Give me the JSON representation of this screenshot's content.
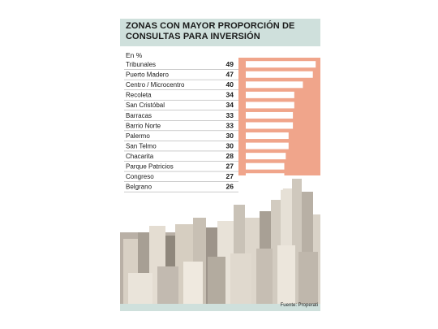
{
  "chart_data": {
    "type": "bar",
    "title": "ZONAS CON MAYOR PROPORCIÓN DE CONSULTAS PARA INVERSIÓN",
    "subtitle": "En %",
    "categories": [
      "Tribunales",
      "Puerto Madero",
      "Centro / Microcentro",
      "Recoleta",
      "San Cristóbal",
      "Barracas",
      "Barrio Norte",
      "Palermo",
      "San Telmo",
      "Chacarita",
      "Parque Patricios",
      "Congreso",
      "Belgrano"
    ],
    "values": [
      49,
      47,
      40,
      34,
      34,
      33,
      33,
      30,
      30,
      28,
      27,
      27,
      26
    ],
    "value_labels": [
      "49",
      "47",
      "40",
      "34",
      "34",
      "33",
      "33",
      "30",
      "30",
      "28",
      "27",
      "27",
      "26"
    ],
    "xlim": [
      0,
      50
    ],
    "orientation": "horizontal",
    "source": "Fuente: Properati"
  },
  "colors": {
    "title_band": "#cfe0dc",
    "value_box": "#f0a58b",
    "bar": "#ffffff",
    "grid": "#9a9a9a"
  }
}
